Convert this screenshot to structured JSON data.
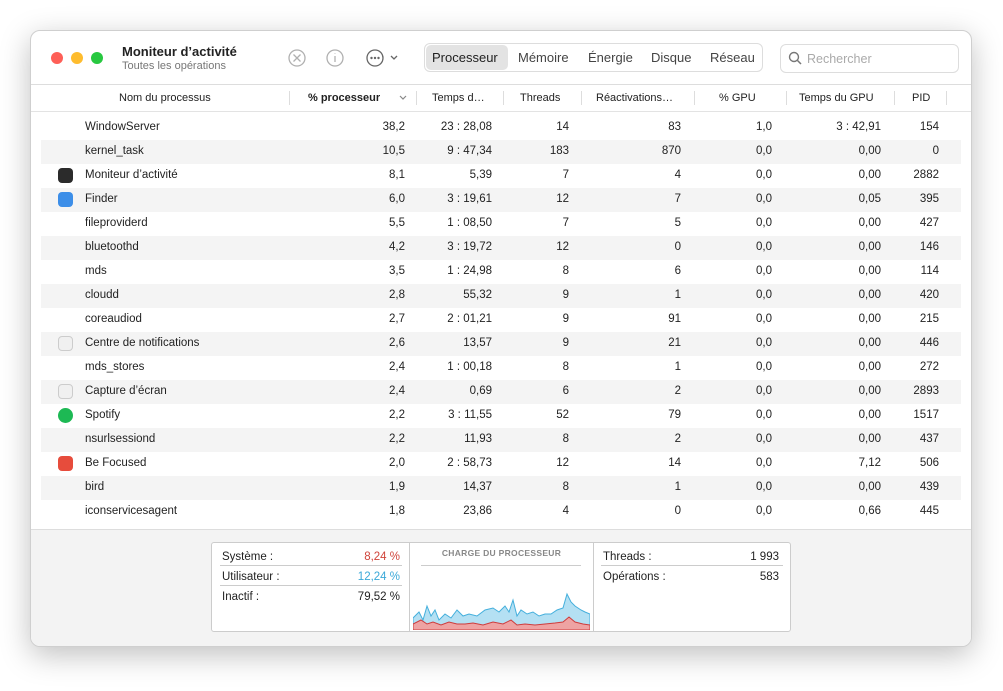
{
  "window": {
    "title": "Moniteur d’activité",
    "subtitle": "Toutes les opérations",
    "tabs": [
      "Processeur",
      "Mémoire",
      "Énergie",
      "Disque",
      "Réseau"
    ],
    "search_placeholder": "Rechercher"
  },
  "table": {
    "columns": [
      "Nom du processus",
      "% processeur",
      "Temps d…",
      "Threads",
      "Réactivations…",
      "% GPU",
      "Temps du GPU",
      "PID"
    ],
    "rows": [
      [
        "WindowServer",
        "38,2",
        "23 : 28,08",
        "14",
        "83",
        "1,0",
        "3 : 42,91",
        "154"
      ],
      [
        "kernel_task",
        "10,5",
        "9 : 47,34",
        "183",
        "870",
        "0,0",
        "0,00",
        "0"
      ],
      [
        "Moniteur d’activité",
        "8,1",
        "5,39",
        "7",
        "4",
        "0,0",
        "0,00",
        "2882"
      ],
      [
        "Finder",
        "6,0",
        "3 : 19,61",
        "12",
        "7",
        "0,0",
        "0,05",
        "395"
      ],
      [
        "fileproviderd",
        "5,5",
        "1 : 08,50",
        "7",
        "5",
        "0,0",
        "0,00",
        "427"
      ],
      [
        "bluetoothd",
        "4,2",
        "3 : 19,72",
        "12",
        "0",
        "0,0",
        "0,00",
        "146"
      ],
      [
        "mds",
        "3,5",
        "1 : 24,98",
        "8",
        "6",
        "0,0",
        "0,00",
        "114"
      ],
      [
        "cloudd",
        "2,8",
        "55,32",
        "9",
        "1",
        "0,0",
        "0,00",
        "420"
      ],
      [
        "coreaudiod",
        "2,7",
        "2 : 01,21",
        "9",
        "91",
        "0,0",
        "0,00",
        "215"
      ],
      [
        "Centre de notifications",
        "2,6",
        "13,57",
        "9",
        "21",
        "0,0",
        "0,00",
        "446"
      ],
      [
        "mds_stores",
        "2,4",
        "1 : 00,18",
        "8",
        "1",
        "0,0",
        "0,00",
        "272"
      ],
      [
        "Capture d’écran",
        "2,4",
        "0,69",
        "6",
        "2",
        "0,0",
        "0,00",
        "2893"
      ],
      [
        "Spotify",
        "2,2",
        "3 : 11,55",
        "52",
        "79",
        "0,0",
        "0,00",
        "1517"
      ],
      [
        "nsurlsessiond",
        "2,2",
        "11,93",
        "8",
        "2",
        "0,0",
        "0,00",
        "437"
      ],
      [
        "Be Focused",
        "2,0",
        "2 : 58,73",
        "12",
        "14",
        "0,0",
        "7,12",
        "506"
      ],
      [
        "bird",
        "1,9",
        "14,37",
        "8",
        "1",
        "0,0",
        "0,00",
        "439"
      ],
      [
        "iconservicesagent",
        "1,8",
        "23,86",
        "4",
        "0",
        "0,0",
        "0,66",
        "445"
      ]
    ]
  },
  "summary": {
    "left": [
      {
        "label": "Système :",
        "value": "8,24 %"
      },
      {
        "label": "Utilisateur :",
        "value": "12,24 %"
      },
      {
        "label": "Inactif :",
        "value": "79,52 %"
      }
    ],
    "graph_title": "CHARGE DU PROCESSEUR",
    "right": [
      {
        "label": "Threads :",
        "value": "1 993"
      },
      {
        "label": "Opérations :",
        "value": "583"
      }
    ]
  }
}
